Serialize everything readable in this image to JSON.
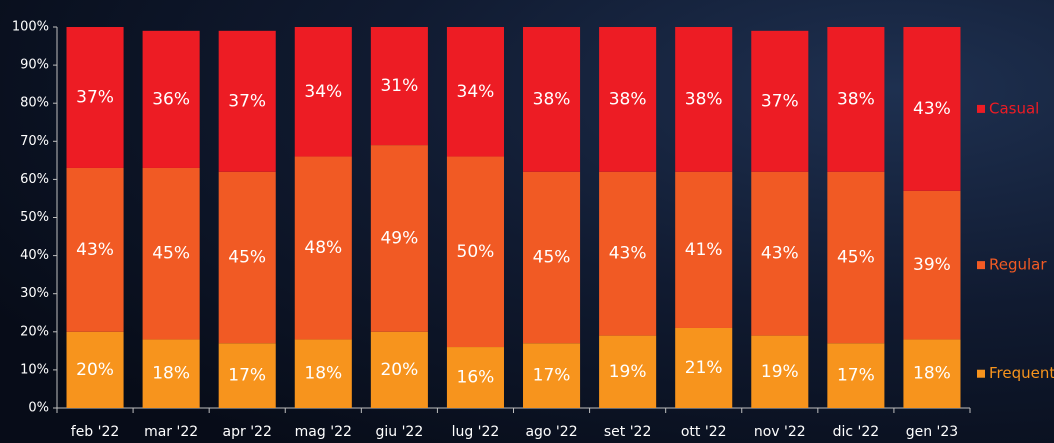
{
  "chart_data": {
    "type": "stacked_bar",
    "categories": [
      "feb '22",
      "mar '22",
      "apr '22",
      "mag '22",
      "giu '22",
      "lug '22",
      "ago '22",
      "set '22",
      "ott '22",
      "nov '22",
      "dic '22",
      "gen '23"
    ],
    "series": [
      {
        "name": "Frequent",
        "color": "#f7941d",
        "values": [
          20,
          18,
          17,
          18,
          20,
          16,
          17,
          19,
          21,
          19,
          17,
          18
        ],
        "value_labels": [
          "20%",
          "18%",
          "17%",
          "18%",
          "20%",
          "16%",
          "17%",
          "19%",
          "21%",
          "19%",
          "17%",
          "18%"
        ]
      },
      {
        "name": "Regular",
        "color": "#f15a24",
        "values": [
          43,
          45,
          45,
          48,
          49,
          50,
          45,
          43,
          41,
          43,
          45,
          39
        ],
        "value_labels": [
          "43%",
          "45%",
          "45%",
          "48%",
          "49%",
          "50%",
          "45%",
          "43%",
          "41%",
          "43%",
          "45%",
          "39%"
        ]
      },
      {
        "name": "Casual",
        "color": "#ed1c24",
        "values": [
          37,
          36,
          37,
          34,
          31,
          34,
          38,
          38,
          38,
          37,
          38,
          43
        ],
        "value_labels": [
          "37%",
          "36%",
          "37%",
          "34%",
          "31%",
          "34%",
          "38%",
          "38%",
          "38%",
          "37%",
          "38%",
          "43%"
        ]
      }
    ],
    "ylim": [
      0,
      100
    ],
    "yticks": [
      {
        "value": 0,
        "label": "0%"
      },
      {
        "value": 10,
        "label": "10%"
      },
      {
        "value": 20,
        "label": "20%"
      },
      {
        "value": 30,
        "label": "30%"
      },
      {
        "value": 40,
        "label": "40%"
      },
      {
        "value": 50,
        "label": "50%"
      },
      {
        "value": 60,
        "label": "60%"
      },
      {
        "value": 70,
        "label": "70%"
      },
      {
        "value": 80,
        "label": "80%"
      },
      {
        "value": 90,
        "label": "90%"
      },
      {
        "value": 100,
        "label": "100%"
      }
    ],
    "legend": "right"
  }
}
